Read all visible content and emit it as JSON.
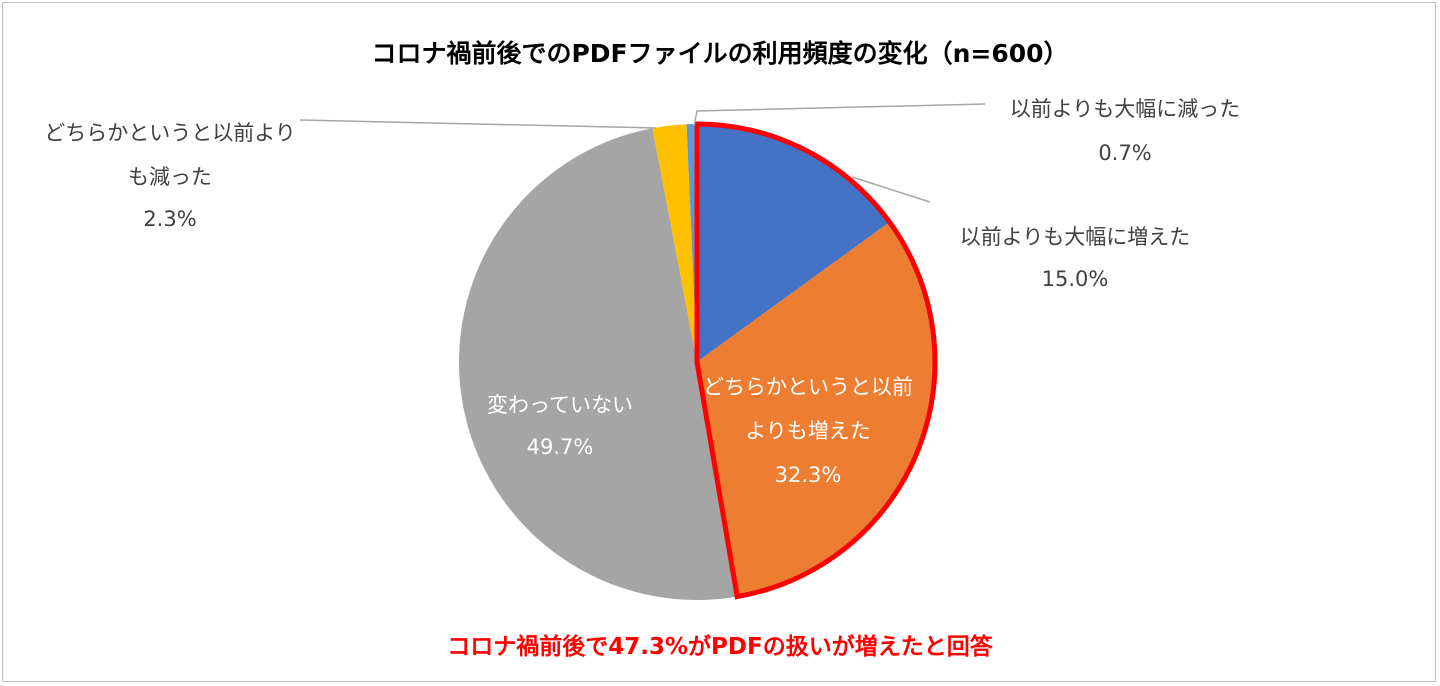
{
  "chart_data": {
    "type": "pie",
    "title": "コロナ禍前後でのPDFファイルの利用頻度の変化（n=600）",
    "start_angle": "12 o'clock, clockwise",
    "slices": [
      {
        "label_lines": [
          "以前よりも大幅に増えた"
        ],
        "value": 15.0,
        "value_label": "15.0%",
        "color": "#4472c4"
      },
      {
        "label_lines": [
          "どちらかというと以前",
          "よりも増えた"
        ],
        "value": 32.3,
        "value_label": "32.3%",
        "color": "#ed7d31"
      },
      {
        "label_lines": [
          "変わっていない"
        ],
        "value": 49.7,
        "value_label": "49.7%",
        "color": "#a5a5a5"
      },
      {
        "label_lines": [
          "どちらかというと以前より",
          "も減った"
        ],
        "value": 2.3,
        "value_label": "2.3%",
        "color": "#ffc000"
      },
      {
        "label_lines": [
          "以前よりも大幅に減った"
        ],
        "value": 0.7,
        "value_label": "0.7%",
        "color": "#5b9bd5"
      }
    ],
    "highlight": {
      "slices": [
        0,
        1
      ],
      "outline_color": "#ff0000"
    },
    "annotation": "コロナ禍前後で47.3%がPDFの扱いが増えたと回答"
  }
}
